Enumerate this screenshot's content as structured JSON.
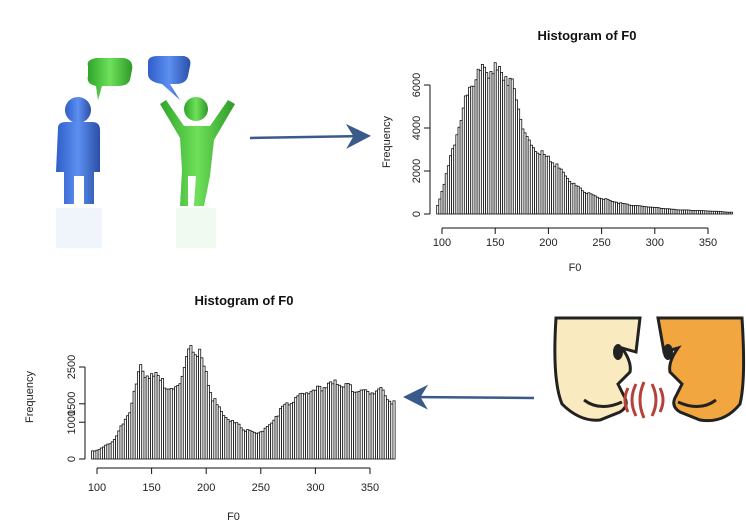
{
  "chart_data": [
    {
      "type": "bar",
      "title": "Histogram of F0",
      "xlabel": "F0",
      "ylabel": "Frequency",
      "xlim": [
        95,
        372
      ],
      "ylim": [
        0,
        6500
      ],
      "xticks": [
        100,
        150,
        200,
        250,
        300,
        350
      ],
      "yticks": [
        0,
        2000,
        4000,
        6000
      ],
      "bin_width": 2,
      "points": [
        [
          95,
          200
        ],
        [
          105,
          2000
        ],
        [
          115,
          4000
        ],
        [
          125,
          5700
        ],
        [
          135,
          6600
        ],
        [
          145,
          6700
        ],
        [
          155,
          6650
        ],
        [
          165,
          6200
        ],
        [
          170,
          5300
        ],
        [
          180,
          3400
        ],
        [
          190,
          2900
        ],
        [
          200,
          2600
        ],
        [
          210,
          2100
        ],
        [
          220,
          1550
        ],
        [
          230,
          1150
        ],
        [
          240,
          900
        ],
        [
          250,
          720
        ],
        [
          260,
          600
        ],
        [
          270,
          480
        ],
        [
          280,
          400
        ],
        [
          290,
          350
        ],
        [
          300,
          300
        ],
        [
          310,
          250
        ],
        [
          320,
          200
        ],
        [
          330,
          180
        ],
        [
          340,
          160
        ],
        [
          350,
          140
        ],
        [
          360,
          120
        ],
        [
          370,
          80
        ]
      ]
    },
    {
      "type": "bar",
      "title": "Histogram of F0",
      "xlabel": "F0",
      "ylabel": "Frequency",
      "xlim": [
        95,
        372
      ],
      "ylim": [
        0,
        3500
      ],
      "xticks": [
        100,
        150,
        200,
        250,
        300,
        350
      ],
      "yticks": [
        0,
        1000,
        1500,
        2500
      ],
      "bin_width": 2,
      "points": [
        [
          95,
          200
        ],
        [
          105,
          300
        ],
        [
          115,
          500
        ],
        [
          125,
          1000
        ],
        [
          130,
          1300
        ],
        [
          135,
          1900
        ],
        [
          140,
          2500
        ],
        [
          145,
          2300
        ],
        [
          150,
          2200
        ],
        [
          155,
          2300
        ],
        [
          160,
          2200
        ],
        [
          165,
          1800
        ],
        [
          170,
          1900
        ],
        [
          175,
          2100
        ],
        [
          180,
          2350
        ],
        [
          185,
          3150
        ],
        [
          190,
          2900
        ],
        [
          195,
          2800
        ],
        [
          200,
          2300
        ],
        [
          205,
          1700
        ],
        [
          215,
          1200
        ],
        [
          225,
          1000
        ],
        [
          235,
          800
        ],
        [
          245,
          700
        ],
        [
          255,
          800
        ],
        [
          260,
          1000
        ],
        [
          265,
          1200
        ],
        [
          270,
          1400
        ],
        [
          280,
          1600
        ],
        [
          290,
          1800
        ],
        [
          300,
          1850
        ],
        [
          310,
          2000
        ],
        [
          320,
          2050
        ],
        [
          330,
          1950
        ],
        [
          340,
          1850
        ],
        [
          350,
          1800
        ],
        [
          360,
          1900
        ],
        [
          370,
          1500
        ]
      ]
    }
  ],
  "icons": [
    "two-people-talking-icon",
    "two-faces-speaking-icon",
    "arrow-right-icon",
    "arrow-left-icon"
  ],
  "colors": {
    "blue_person": "#3f6fd1",
    "green_person": "#46c13a",
    "arrow": "#3a5a8a",
    "face_left": "#faeac0",
    "face_right": "#f2a640"
  }
}
